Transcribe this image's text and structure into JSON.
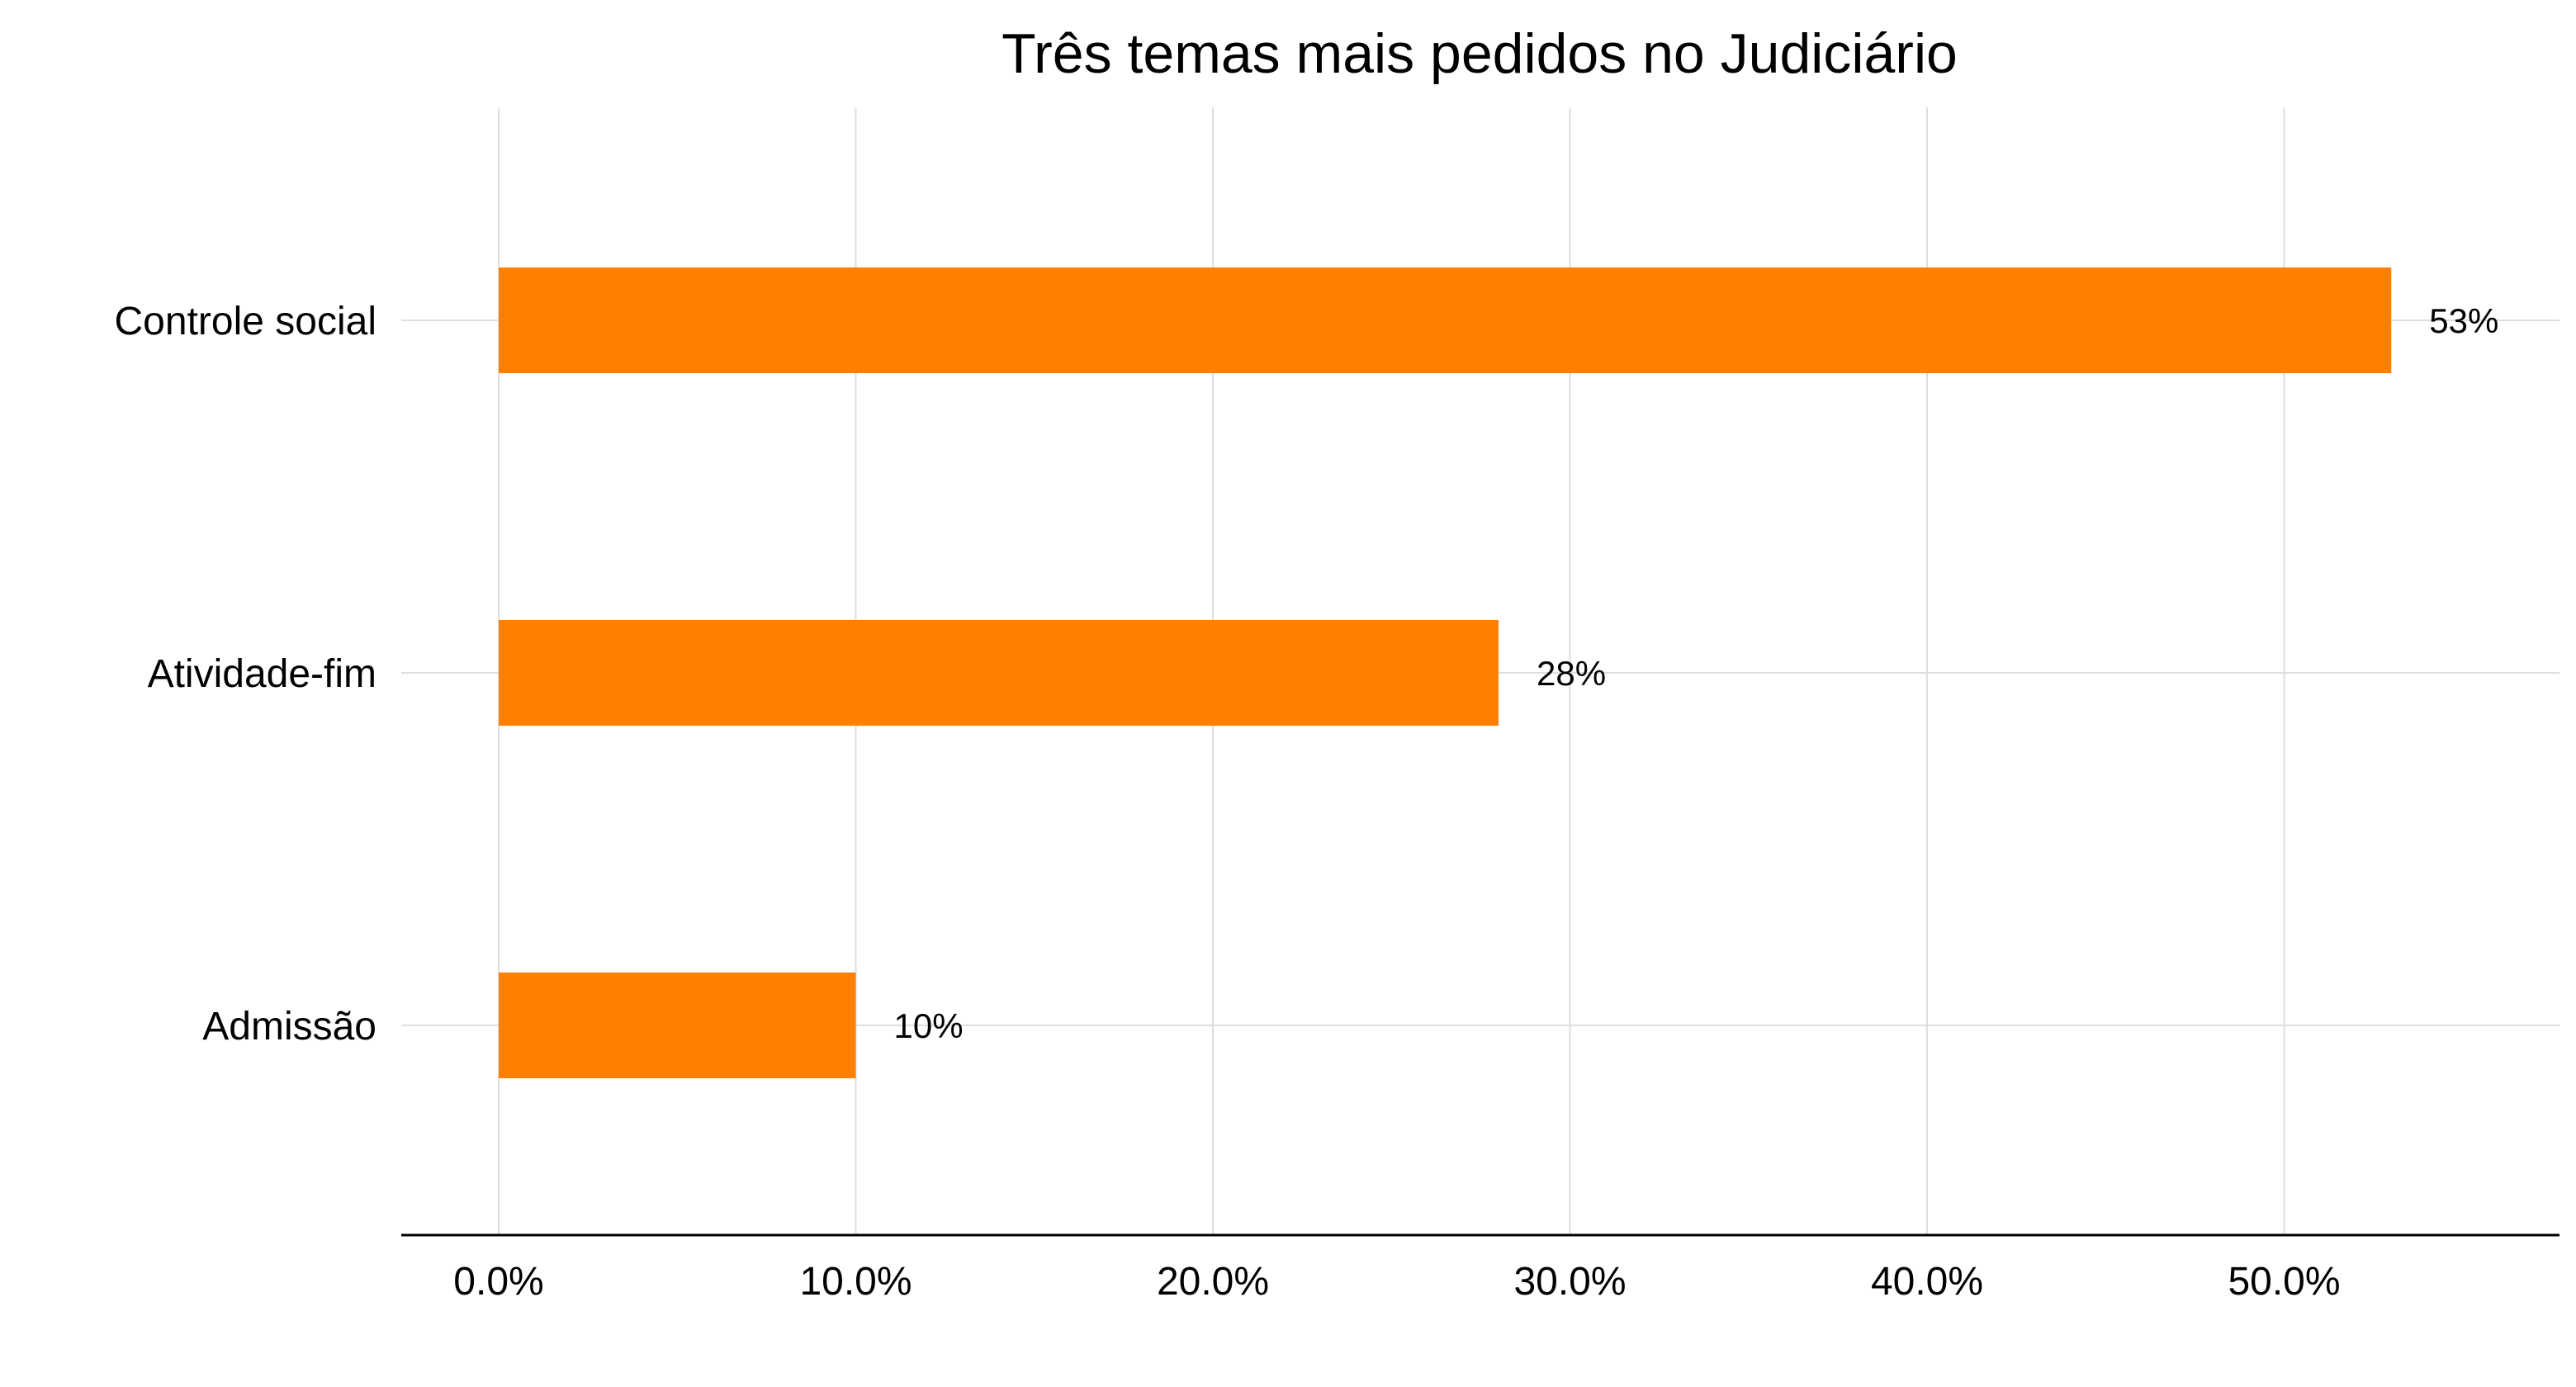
{
  "chart_data": {
    "type": "bar",
    "orientation": "horizontal",
    "title": "Três temas mais pedidos no Judiciário",
    "xlabel": "",
    "ylabel": "",
    "categories": [
      "Controle social",
      "Atividade-fim",
      "Admissão"
    ],
    "values": [
      53,
      28,
      10
    ],
    "data_labels": [
      "53%",
      "28%",
      "10%"
    ],
    "xlim": [
      0,
      57
    ],
    "x_ticks": [
      0,
      10,
      20,
      30,
      40,
      50
    ],
    "x_tick_labels": [
      "0.0%",
      "10.0%",
      "20.0%",
      "30.0%",
      "40.0%",
      "50.0%"
    ],
    "grid": true,
    "legend": "none",
    "bar_color": "#FF8000"
  }
}
